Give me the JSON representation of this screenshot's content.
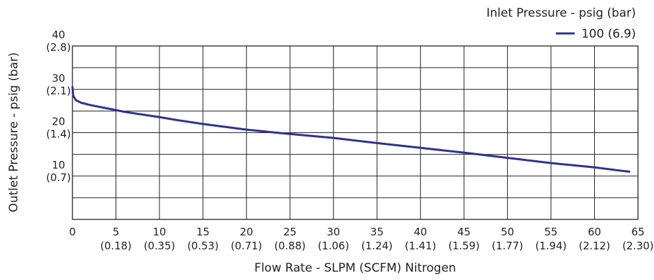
{
  "chart_data": {
    "type": "line",
    "xlabel": "Flow Rate - SLPM (SCFM) Nitrogen",
    "ylabel": "Outlet Pressure - psig (bar)",
    "xlim": [
      0,
      65
    ],
    "ylim": [
      0,
      40
    ],
    "grid": true,
    "x_ticks": [
      {
        "value": 0,
        "label": "0",
        "sub": ""
      },
      {
        "value": 5,
        "label": "5",
        "sub": "(0.18)"
      },
      {
        "value": 10,
        "label": "10",
        "sub": "(0.35)"
      },
      {
        "value": 15,
        "label": "15",
        "sub": "(0.53)"
      },
      {
        "value": 20,
        "label": "20",
        "sub": "(0.71)"
      },
      {
        "value": 25,
        "label": "25",
        "sub": "(0.88)"
      },
      {
        "value": 30,
        "label": "30",
        "sub": "(1.06)"
      },
      {
        "value": 35,
        "label": "35",
        "sub": "(1.24)"
      },
      {
        "value": 40,
        "label": "40",
        "sub": "(1.41)"
      },
      {
        "value": 45,
        "label": "45",
        "sub": "(1.59)"
      },
      {
        "value": 50,
        "label": "50",
        "sub": "(1.77)"
      },
      {
        "value": 55,
        "label": "55",
        "sub": "(1.94)"
      },
      {
        "value": 60,
        "label": "60",
        "sub": "(2.12)"
      },
      {
        "value": 65,
        "label": "65",
        "sub": "(2.30)"
      }
    ],
    "y_ticks": [
      {
        "value": 10,
        "label": "10",
        "sub": "(0.7)"
      },
      {
        "value": 20,
        "label": "20",
        "sub": "(1.4)"
      },
      {
        "value": 30,
        "label": "30",
        "sub": "(2.1)"
      },
      {
        "value": 40,
        "label": "40",
        "sub": "(2.8)"
      }
    ],
    "y_grid_values": [
      0,
      5,
      10,
      15,
      20,
      25,
      30,
      35,
      40
    ],
    "legend": {
      "title": "Inlet Pressure - psig (bar)",
      "placement": "top-right"
    },
    "series": [
      {
        "name": "100 (6.9)",
        "color": "#2e3192",
        "x": [
          0,
          0.1,
          0.4,
          1,
          2,
          4,
          6,
          8,
          10,
          12,
          15,
          20,
          25,
          30,
          35,
          40,
          45,
          50,
          55,
          60,
          64
        ],
        "y": [
          30.5,
          28.5,
          27.5,
          26.9,
          26.4,
          25.6,
          24.8,
          24.2,
          23.6,
          22.9,
          22.0,
          20.7,
          19.7,
          18.8,
          17.6,
          16.5,
          15.4,
          14.2,
          13.0,
          12.0,
          11.0
        ]
      }
    ]
  }
}
